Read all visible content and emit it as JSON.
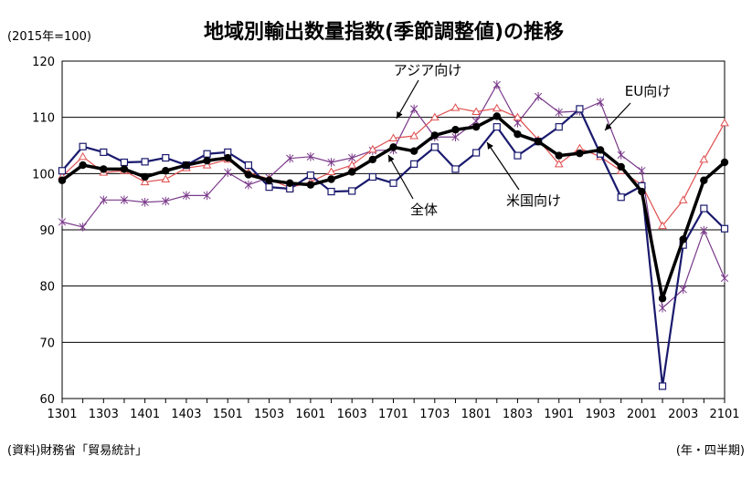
{
  "chart_data": {
    "type": "line",
    "title": "地域別輸出数量指数(季節調整値)の推移",
    "unit_label": "(2015年=100)",
    "source": "(資料)財務省「貿易統計」",
    "period_label": "(年・四半期)",
    "ylim": [
      60,
      120
    ],
    "yticks": [
      "60",
      "70",
      "80",
      "90",
      "100",
      "110",
      "120"
    ],
    "xticks": [
      "1301",
      "1303",
      "1401",
      "1403",
      "1501",
      "1503",
      "1601",
      "1603",
      "1701",
      "1703",
      "1801",
      "1803",
      "1901",
      "1903",
      "2001",
      "2003",
      "2101"
    ],
    "grid": true,
    "categories": [
      "1301",
      "1302",
      "1303",
      "1304",
      "1401",
      "1402",
      "1403",
      "1404",
      "1501",
      "1502",
      "1503",
      "1504",
      "1601",
      "1602",
      "1603",
      "1604",
      "1701",
      "1702",
      "1703",
      "1704",
      "1801",
      "1802",
      "1803",
      "1804",
      "1901",
      "1902",
      "1903",
      "1904",
      "2001",
      "2002",
      "2003",
      "2004",
      "2101"
    ],
    "series": [
      {
        "name": "全体",
        "color": "#000000",
        "marker": "dot",
        "values": [
          98.8,
          101.5,
          100.8,
          100.8,
          99.4,
          100.5,
          101.5,
          102.3,
          102.8,
          99.8,
          98.8,
          98.3,
          98.0,
          99.0,
          100.3,
          102.5,
          104.7,
          104.0,
          106.8,
          107.8,
          108.3,
          110.2,
          107.0,
          105.7,
          103.2,
          103.6,
          104.2,
          101.2,
          96.8,
          77.8,
          88.3,
          98.8,
          102.0
        ]
      },
      {
        "name": "アジア向け",
        "color": "#e05050",
        "marker": "triangle",
        "values": [
          99.5,
          103.0,
          100.2,
          100.5,
          98.5,
          99.0,
          101.0,
          101.5,
          102.5,
          100.2,
          99.0,
          97.5,
          98.5,
          100.3,
          101.5,
          104.3,
          106.3,
          106.7,
          110.0,
          111.7,
          111.0,
          111.6,
          110.0,
          106.0,
          101.7,
          104.5,
          103.0,
          100.5,
          98.0,
          90.7,
          95.3,
          102.5,
          109.0
        ]
      },
      {
        "name": "米国向け",
        "color": "#1a1a6e",
        "marker": "square",
        "values": [
          100.5,
          104.8,
          103.8,
          102.0,
          102.1,
          102.8,
          101.5,
          103.5,
          103.8,
          101.5,
          97.6,
          97.3,
          99.7,
          96.8,
          96.9,
          99.4,
          98.3,
          101.7,
          104.7,
          100.8,
          103.7,
          108.3,
          103.2,
          105.7,
          108.3,
          111.5,
          103.5,
          95.8,
          97.8,
          62.2,
          87.3,
          93.8,
          90.2
        ]
      },
      {
        "name": "EU向け",
        "color": "#7a3a8a",
        "marker": "star",
        "values": [
          91.4,
          90.5,
          95.3,
          95.3,
          94.9,
          95.1,
          96.1,
          96.1,
          100.2,
          98.0,
          99.3,
          102.7,
          103.0,
          102.0,
          102.8,
          104.1,
          104.2,
          111.5,
          106.5,
          106.5,
          109.3,
          115.8,
          109.0,
          113.7,
          110.9,
          111.1,
          112.7,
          103.3,
          100.5,
          76.1,
          79.4,
          89.9,
          81.4
        ]
      }
    ],
    "annotations": [
      {
        "series": "アジア向け",
        "text": "アジア向け"
      },
      {
        "series": "EU向け",
        "text": "EU向け"
      },
      {
        "series": "全体",
        "text": "全体"
      },
      {
        "series": "米国向け",
        "text": "米国向け"
      }
    ]
  }
}
